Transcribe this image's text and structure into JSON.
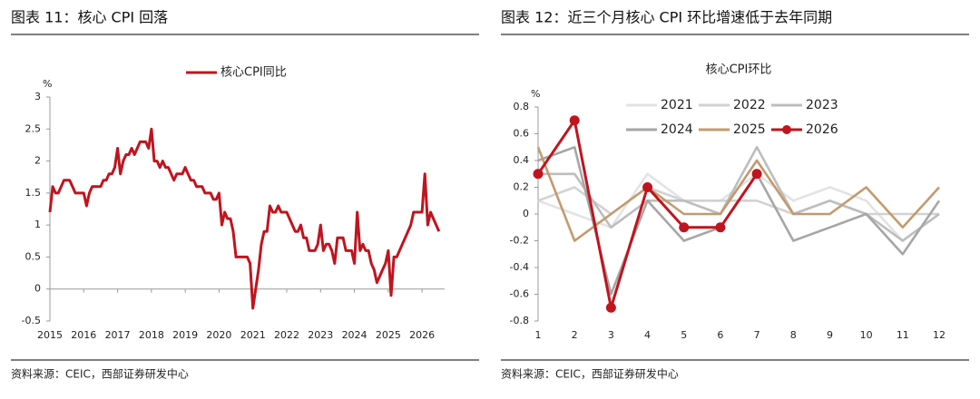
{
  "chart_data": [
    {
      "type": "line",
      "figure_title": "图表 11：核心 CPI 回落",
      "source": "资料来源：CEIC，西部证券研发中心",
      "y_unit": "%",
      "x": [
        "2015-01",
        "2015-02",
        "2015-03",
        "2015-04",
        "2015-05",
        "2015-06",
        "2015-07",
        "2015-08",
        "2015-09",
        "2015-10",
        "2015-11",
        "2015-12",
        "2016-01",
        "2016-02",
        "2016-03",
        "2016-04",
        "2016-05",
        "2016-06",
        "2016-07",
        "2016-08",
        "2016-09",
        "2016-10",
        "2016-11",
        "2016-12",
        "2017-01",
        "2017-02",
        "2017-03",
        "2017-04",
        "2017-05",
        "2017-06",
        "2017-07",
        "2017-08",
        "2017-09",
        "2017-10",
        "2017-11",
        "2017-12",
        "2018-01",
        "2018-02",
        "2018-03",
        "2018-04",
        "2018-05",
        "2018-06",
        "2018-07",
        "2018-08",
        "2018-09",
        "2018-10",
        "2018-11",
        "2018-12",
        "2019-01",
        "2019-02",
        "2019-03",
        "2019-04",
        "2019-05",
        "2019-06",
        "2019-07",
        "2019-08",
        "2019-09",
        "2019-10",
        "2019-11",
        "2019-12",
        "2020-01",
        "2020-02",
        "2020-03",
        "2020-04",
        "2020-05",
        "2020-06",
        "2020-07",
        "2020-08",
        "2020-09",
        "2020-10",
        "2020-11",
        "2020-12",
        "2021-01",
        "2021-02",
        "2021-03",
        "2021-04",
        "2021-05",
        "2021-06",
        "2021-07",
        "2021-08",
        "2021-09",
        "2021-10",
        "2021-11",
        "2021-12",
        "2022-01",
        "2022-02",
        "2022-03",
        "2022-04",
        "2022-05",
        "2022-06",
        "2022-07",
        "2022-08",
        "2022-09",
        "2022-10",
        "2022-11",
        "2022-12",
        "2023-01",
        "2023-02",
        "2023-03",
        "2023-04",
        "2023-05",
        "2023-06",
        "2023-07",
        "2023-08",
        "2023-09",
        "2023-10",
        "2023-11",
        "2023-12",
        "2024-01",
        "2024-02",
        "2024-03",
        "2024-04",
        "2024-05",
        "2024-06",
        "2024-07",
        "2024-08",
        "2024-09",
        "2024-10",
        "2024-11",
        "2024-12",
        "2025-01",
        "2025-02",
        "2025-03",
        "2025-04",
        "2025-05",
        "2025-06",
        "2025-07",
        "2025-08",
        "2025-09",
        "2025-10",
        "2025-11",
        "2025-12",
        "2026-01",
        "2026-02",
        "2026-03",
        "2026-04",
        "2026-05",
        "2026-06",
        "2026-07"
      ],
      "series": [
        {
          "name": "核心CPI同比",
          "color": "#c0141e",
          "values": [
            1.2,
            1.6,
            1.5,
            1.5,
            1.6,
            1.7,
            1.7,
            1.7,
            1.6,
            1.5,
            1.5,
            1.5,
            1.5,
            1.3,
            1.5,
            1.6,
            1.6,
            1.6,
            1.6,
            1.7,
            1.7,
            1.8,
            1.8,
            1.9,
            2.2,
            1.8,
            2.0,
            2.1,
            2.1,
            2.2,
            2.1,
            2.2,
            2.3,
            2.3,
            2.3,
            2.2,
            2.5,
            2.0,
            2.0,
            1.9,
            2.0,
            1.9,
            1.9,
            1.8,
            1.7,
            1.8,
            1.8,
            1.8,
            1.9,
            1.8,
            1.7,
            1.7,
            1.6,
            1.6,
            1.6,
            1.5,
            1.5,
            1.5,
            1.4,
            1.4,
            1.5,
            1.0,
            1.2,
            1.1,
            1.1,
            0.9,
            0.5,
            0.5,
            0.5,
            0.5,
            0.5,
            0.4,
            -0.3,
            0.0,
            0.3,
            0.7,
            0.9,
            0.9,
            1.3,
            1.2,
            1.2,
            1.3,
            1.2,
            1.2,
            1.2,
            1.1,
            1.0,
            0.9,
            0.9,
            1.0,
            0.8,
            0.8,
            0.6,
            0.6,
            0.6,
            0.7,
            1.0,
            0.6,
            0.7,
            0.7,
            0.6,
            0.4,
            0.8,
            0.8,
            0.8,
            0.6,
            0.6,
            0.6,
            0.4,
            1.2,
            0.6,
            0.7,
            0.6,
            0.6,
            0.4,
            0.3,
            0.1,
            0.2,
            0.3,
            0.4,
            0.6,
            -0.1,
            0.5,
            0.5,
            0.6,
            0.7,
            0.8,
            0.9,
            1.0,
            1.2,
            1.2,
            1.2,
            1.2,
            1.8,
            1.0,
            1.2,
            1.1,
            1.0,
            0.9
          ]
        }
      ],
      "xlim": [
        "2015-01",
        "2026-09"
      ],
      "xticks": [
        {
          "value": "2015-01",
          "label": "2015"
        },
        {
          "value": "2016-01",
          "label": "2016"
        },
        {
          "value": "2017-01",
          "label": "2017"
        },
        {
          "value": "2018-01",
          "label": "2018"
        },
        {
          "value": "2019-01",
          "label": "2019"
        },
        {
          "value": "2020-01",
          "label": "2020"
        },
        {
          "value": "2021-01",
          "label": "2021"
        },
        {
          "value": "2022-01",
          "label": "2022"
        },
        {
          "value": "2023-01",
          "label": "2023"
        },
        {
          "value": "2024-01",
          "label": "2024"
        },
        {
          "value": "2025-01",
          "label": "2025"
        },
        {
          "value": "2026-01",
          "label": "2026"
        }
      ],
      "ylim": [
        -0.5,
        3
      ],
      "yticks": [
        3,
        2.5,
        2,
        1.5,
        1,
        0.5,
        0,
        -0.5
      ],
      "grid": false
    },
    {
      "type": "line",
      "figure_title": "图表 12：近三个月核心 CPI 环比增速低于去年同期",
      "source": "资料来源：CEIC，西部证券研发中心",
      "title": "核心CPI环比",
      "y_unit": "%",
      "categories": [
        1,
        2,
        3,
        4,
        5,
        6,
        7,
        8,
        9,
        10,
        11,
        12
      ],
      "series": [
        {
          "name": "2021",
          "color": "#e3e3e3",
          "values": [
            0.1,
            0.0,
            -0.1,
            0.3,
            0.1,
            0.1,
            0.3,
            0.1,
            0.2,
            0.1,
            -0.2,
            0.0
          ]
        },
        {
          "name": "2022",
          "color": "#d2d2d2",
          "values": [
            0.1,
            0.2,
            0.0,
            0.2,
            0.1,
            0.1,
            0.1,
            0.0,
            0.1,
            0.0,
            0.0,
            0.0
          ]
        },
        {
          "name": "2023",
          "color": "#bdbdbd",
          "values": [
            0.3,
            0.3,
            -0.1,
            0.1,
            0.1,
            0.0,
            0.5,
            0.0,
            0.1,
            0.0,
            -0.2,
            0.0
          ]
        },
        {
          "name": "2024",
          "color": "#a6a6a6",
          "values": [
            0.4,
            0.5,
            -0.6,
            0.1,
            -0.2,
            -0.1,
            0.3,
            -0.2,
            -0.1,
            0.0,
            -0.3,
            0.1
          ]
        },
        {
          "name": "2025",
          "color": "#c49a6c",
          "values": [
            0.5,
            -0.2,
            0.0,
            0.2,
            0.0,
            0.0,
            0.4,
            0.0,
            0.0,
            0.2,
            -0.1,
            0.2
          ]
        },
        {
          "name": "2026",
          "color": "#c0141e",
          "markers": true,
          "values": [
            0.3,
            0.7,
            -0.7,
            0.2,
            -0.1,
            -0.1,
            0.3,
            null,
            null,
            null,
            null,
            null
          ]
        }
      ],
      "ylim": [
        -0.8,
        0.8
      ],
      "yticks": [
        0.8,
        0.6,
        0.4,
        0.2,
        0,
        -0.2,
        -0.4,
        -0.6,
        -0.8
      ],
      "grid": false
    }
  ]
}
